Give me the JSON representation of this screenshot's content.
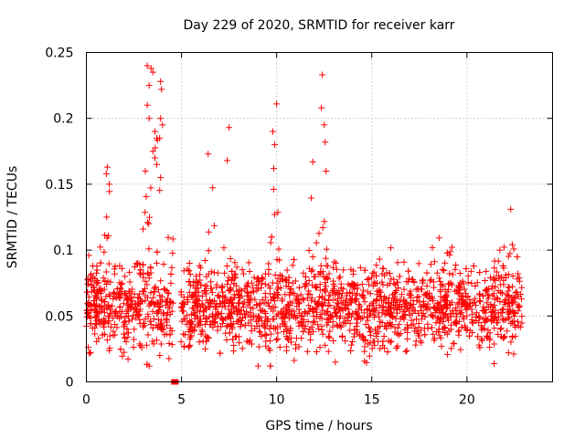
{
  "chart_data": {
    "type": "scatter",
    "title": "Day 229 of 2020, SRMTID for receiver karr",
    "xlabel": "GPS time / hours",
    "ylabel": "SRMTID / TECUs",
    "xlim": [
      0,
      24.5
    ],
    "ylim": [
      0,
      0.25
    ],
    "x_ticks": [
      0,
      5,
      10,
      15,
      20
    ],
    "x_tick_labels": [
      "0",
      "5",
      "10",
      "15",
      "20"
    ],
    "y_ticks": [
      0,
      0.05,
      0.1,
      0.15,
      0.2,
      0.25
    ],
    "y_tick_labels": [
      "0",
      "0.05",
      "0.1",
      "0.15",
      "0.2",
      "0.25"
    ],
    "grid": true,
    "marker": "plus",
    "color": "#ff0000",
    "x_range_of_data": [
      0,
      22.9
    ],
    "series": [
      {
        "name": "SRMTID",
        "sample_points": [
          {
            "x": 3.2,
            "y": 0.24
          },
          {
            "x": 3.4,
            "y": 0.238
          },
          {
            "x": 3.5,
            "y": 0.235
          },
          {
            "x": 3.3,
            "y": 0.225
          },
          {
            "x": 3.9,
            "y": 0.228
          },
          {
            "x": 3.95,
            "y": 0.222
          },
          {
            "x": 3.2,
            "y": 0.21
          },
          {
            "x": 3.3,
            "y": 0.2
          },
          {
            "x": 3.9,
            "y": 0.2
          },
          {
            "x": 4.0,
            "y": 0.195
          },
          {
            "x": 3.6,
            "y": 0.19
          },
          {
            "x": 3.7,
            "y": 0.185
          },
          {
            "x": 3.85,
            "y": 0.185
          },
          {
            "x": 3.5,
            "y": 0.175
          },
          {
            "x": 3.6,
            "y": 0.17
          },
          {
            "x": 3.7,
            "y": 0.165
          },
          {
            "x": 3.1,
            "y": 0.16
          },
          {
            "x": 3.9,
            "y": 0.155
          },
          {
            "x": 7.5,
            "y": 0.193
          },
          {
            "x": 7.4,
            "y": 0.168
          },
          {
            "x": 10.0,
            "y": 0.211
          },
          {
            "x": 9.8,
            "y": 0.19
          },
          {
            "x": 9.9,
            "y": 0.18
          },
          {
            "x": 9.85,
            "y": 0.162
          },
          {
            "x": 12.4,
            "y": 0.233
          },
          {
            "x": 12.35,
            "y": 0.208
          },
          {
            "x": 12.5,
            "y": 0.195
          },
          {
            "x": 12.55,
            "y": 0.182
          },
          {
            "x": 11.9,
            "y": 0.167
          },
          {
            "x": 12.6,
            "y": 0.16
          },
          {
            "x": 6.4,
            "y": 0.173
          },
          {
            "x": 1.1,
            "y": 0.163
          },
          {
            "x": 1.05,
            "y": 0.158
          },
          {
            "x": 1.2,
            "y": 0.15
          },
          {
            "x": 22.3,
            "y": 0.131
          },
          {
            "x": 4.6,
            "y": 0.0
          },
          {
            "x": 4.7,
            "y": 0.0
          }
        ]
      }
    ]
  }
}
